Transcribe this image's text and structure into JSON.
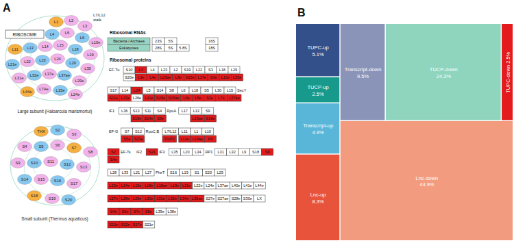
{
  "panel_labels": [
    "A",
    "B"
  ],
  "panel_a": {
    "title": "RIBOSOME",
    "large_subunit": {
      "caption": "Large subunit (Haloarcula marismortui)",
      "annotation_lines": [
        "L7/L12",
        "stalk"
      ],
      "proteins": [
        {
          "label": "L1",
          "color": "#f5b041"
        },
        {
          "label": "L2",
          "color": "#f2b3ea"
        },
        {
          "label": "L3",
          "color": "#f2b3ea"
        },
        {
          "label": "L4",
          "color": "#86c8f0"
        },
        {
          "label": "L5",
          "color": "#f2b3ea"
        },
        {
          "label": "L6",
          "color": "#86c8f0"
        },
        {
          "label": "L10e",
          "color": "#f2b3ea"
        },
        {
          "label": "L11",
          "color": "#f5b041"
        },
        {
          "label": "L13",
          "color": "#86c8f0"
        },
        {
          "label": "L14",
          "color": "#f2b3ea"
        },
        {
          "label": "L15",
          "color": "#f2b3ea"
        },
        {
          "label": "L18",
          "color": "#86c8f0"
        },
        {
          "label": "L19",
          "color": "#f2b3ea"
        },
        {
          "label": "L21e",
          "color": "#86c8f0"
        },
        {
          "label": "L22",
          "color": "#f2b3ea"
        },
        {
          "label": "L23",
          "color": "#86c8f0"
        },
        {
          "label": "L24",
          "color": "#f2b3ea"
        },
        {
          "label": "L29",
          "color": "#86c8f0"
        },
        {
          "label": "L30",
          "color": "#f2b3ea"
        },
        {
          "label": "L31e",
          "color": "#f2b3ea"
        },
        {
          "label": "L32e",
          "color": "#86c8f0"
        },
        {
          "label": "L37e",
          "color": "#f2b3ea"
        },
        {
          "label": "L37ae",
          "color": "#86c8f0"
        },
        {
          "label": "L39e",
          "color": "#f2b3ea"
        },
        {
          "label": "L44e",
          "color": "#f5b041"
        },
        {
          "label": "L7Ae",
          "color": "#f2b3ea"
        },
        {
          "label": "L15e",
          "color": "#86c8f0"
        },
        {
          "label": "L24e",
          "color": "#f2b3ea"
        }
      ]
    },
    "small_subunit": {
      "caption": "Small subunit (Thermus aquaticus)",
      "proteins": [
        {
          "label": "THX",
          "color": "#f5b041"
        },
        {
          "label": "S2",
          "color": "#86c8f0"
        },
        {
          "label": "S3",
          "color": "#f2b3ea"
        },
        {
          "label": "S4",
          "color": "#f2b3ea"
        },
        {
          "label": "S5",
          "color": "#86c8f0"
        },
        {
          "label": "S6",
          "color": "#f2b3ea"
        },
        {
          "label": "S7",
          "color": "#f5b041"
        },
        {
          "label": "S8",
          "color": "#f2b3ea"
        },
        {
          "label": "S9",
          "color": "#f2b3ea"
        },
        {
          "label": "S10",
          "color": "#86c8f0"
        },
        {
          "label": "S11",
          "color": "#f2b3ea"
        },
        {
          "label": "S12",
          "color": "#86c8f0"
        },
        {
          "label": "S13",
          "color": "#f2b3ea"
        },
        {
          "label": "S14",
          "color": "#86c8f0"
        },
        {
          "label": "S15",
          "color": "#f2b3ea"
        },
        {
          "label": "S16",
          "color": "#86c8f0"
        },
        {
          "label": "S17",
          "color": "#f2b3ea"
        },
        {
          "label": "S18",
          "color": "#f5b041"
        },
        {
          "label": "S19",
          "color": "#f2b3ea"
        },
        {
          "label": "S20",
          "color": "#86c8f0"
        }
      ]
    },
    "rrna": {
      "title": "Ribosomal RNAs",
      "rows": [
        {
          "label": "Bacteria / Archaea",
          "large": [
            "23S",
            "5S"
          ],
          "small": [
            "16S"
          ]
        },
        {
          "label": "Eukaryotes",
          "large": [
            "28S",
            "5S",
            "5.8S"
          ],
          "small": [
            "18S"
          ]
        }
      ]
    },
    "proteins_title": "Ribosomal proteins",
    "protein_rows": [
      [
        [
          {
            "text": "EF-Tu"
          },
          "S10",
          {
            "red": "L3"
          },
          "L4",
          "L23",
          "L2",
          "S19",
          "L22",
          "S3",
          "L16",
          "L29"
        ],
        [
          null,
          "S20e",
          {
            "red": "L3e"
          },
          {
            "red": "L4e"
          },
          {
            "red": "L23ae"
          },
          {
            "red": "L8e"
          },
          {
            "red": "S15e"
          },
          {
            "red": "L17e"
          },
          {
            "red": "S3e"
          },
          {
            "red": "L10e"
          },
          {
            "red": "L35e"
          }
        ]
      ],
      [
        [
          "S17",
          "L14",
          {
            "red": "L24"
          },
          "L5",
          "S14",
          "S8",
          "L6",
          "L18",
          "S5",
          "L30",
          "L15",
          {
            "text": "SecY"
          }
        ],
        [
          {
            "red": "S11e"
          },
          {
            "red": "L23e"
          },
          "L26e",
          {
            "red": "L11e"
          },
          {
            "red": "S29e"
          },
          {
            "red": "S15ae"
          },
          {
            "red": "L9e"
          },
          {
            "red": "L5e"
          },
          {
            "red": "S2e"
          },
          {
            "red": "L7e"
          },
          {
            "red": "L27ae"
          }
        ]
      ],
      [
        [
          {
            "text": "IF1"
          },
          "L36",
          "S13",
          "S11",
          "S4",
          {
            "text": "RpoA"
          },
          "L17",
          "L13",
          "S9"
        ],
        [
          null,
          null,
          {
            "red": "S18e"
          },
          {
            "red": "S14e"
          },
          {
            "red": "S9e"
          },
          null,
          null,
          {
            "red": "L13ae"
          },
          {
            "red": "S16e"
          }
        ]
      ],
      [
        [
          {
            "text": "EF-G"
          },
          "S7",
          "S12",
          {
            "text": "RpoC,B"
          },
          "L7/L12",
          "L11",
          "L1",
          "L10"
        ],
        [
          null,
          {
            "red": "S5e"
          },
          {
            "red": "S23e"
          },
          null,
          {
            "red": "P1/P2"
          },
          {
            "red": "L12e"
          },
          {
            "red": "L10ae"
          },
          {
            "red": "P0"
          }
        ]
      ],
      [
        [
          {
            "red": "S2"
          },
          {
            "text": "EF-Ts"
          },
          {
            "text": "IF2"
          },
          {
            "red": "S21"
          },
          {
            "text": "IF3"
          },
          "L35",
          "L20",
          "L34",
          {
            "text": "RP1"
          },
          "L31",
          "L32",
          "L9",
          "S18",
          {
            "red": "S6"
          }
        ],
        [
          {
            "red": "SAe"
          }
        ]
      ],
      [
        [
          "L28",
          "L33",
          "L21",
          "L27",
          {
            "text": "PheT"
          },
          "S16",
          "L19",
          "S1",
          "S20",
          "L25"
        ]
      ],
      [
        [
          {
            "red": "L13e"
          },
          {
            "red": "L14e"
          },
          {
            "red": "L15e"
          },
          {
            "red": "L18e"
          },
          {
            "red": "L18ae"
          },
          {
            "red": "L19e"
          },
          {
            "red": "L21e"
          },
          "L22e",
          "L24e",
          "L37ae",
          "L40e",
          "L41e",
          "L44e"
        ]
      ],
      [
        [
          {
            "red": "L27e"
          },
          {
            "red": "L28e"
          },
          {
            "red": "L29e"
          },
          {
            "red": "L30e"
          },
          {
            "red": "L31e"
          },
          {
            "red": "L32e"
          },
          {
            "red": "L34e"
          },
          {
            "red": "L35ae"
          },
          "S27e",
          "S27ae",
          "S28e",
          "S30e",
          "LX"
        ]
      ],
      [
        [
          {
            "red": "S4e"
          },
          {
            "red": "S6e"
          },
          {
            "red": "S7e"
          },
          {
            "red": "S8e"
          },
          "L39e",
          "L38e"
        ]
      ],
      [
        [
          {
            "red": "S10e"
          },
          {
            "red": "S12e"
          },
          {
            "red": "S17e"
          },
          "S21e"
        ]
      ]
    ]
  },
  "chart_data": {
    "type": "treemap",
    "data_labels": true,
    "children": [
      {
        "children": [
          {
            "name": "TUPC-up",
            "value": 5.1,
            "value_label": "5.1%",
            "color": "#34508a"
          },
          {
            "name": "TUCP-up",
            "value": 2.5,
            "value_label": "2.5%",
            "color": "#17998b"
          },
          {
            "name": "Transcript-up",
            "value": 4.9,
            "value_label": "4.9%",
            "color": "#5ab6d9"
          },
          {
            "name": "Lnc-up",
            "value": 8.3,
            "value_label": "8.3%",
            "color": "#e8533b"
          }
        ]
      },
      {
        "children": [
          {
            "children": [
              {
                "name": "Transcript-down",
                "value": 9.5,
                "value_label": "9.5%",
                "color": "#8a94b8"
              },
              {
                "name": "TUCP-down",
                "value": 24.3,
                "value_label": "24.3%",
                "color": "#8fd4bd"
              },
              {
                "name": "TUPC-down",
                "value": 2.5,
                "value_label": "2.5%",
                "color": "#e41a1c"
              }
            ]
          },
          {
            "name": "Lnc-down",
            "value": 44.9,
            "value_label": "44.9%",
            "color": "#f29b7e"
          }
        ]
      }
    ]
  }
}
